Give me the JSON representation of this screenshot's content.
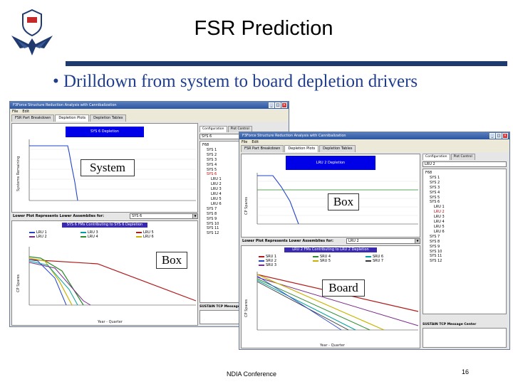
{
  "slide": {
    "title": "FSR Prediction",
    "bullet": "• Drilldown from system to board depletion drivers",
    "footer": "NDIA Conference",
    "page_number": "16",
    "accent_color": "#1f3a6e",
    "bullet_color": "#1f3d8c"
  },
  "callouts": {
    "system": "System",
    "box_left": "Box",
    "box_right": "Box",
    "board": "Board"
  },
  "left_window": {
    "title": "F3Force Structure Reduction Analysis with Cannibalization",
    "menu": [
      "File",
      "Edit"
    ],
    "tabs": [
      "FSR Part Breakdown",
      "Depletion Plots",
      "Depletion Tables"
    ],
    "top_banner": "SYS 6 Depletion",
    "config_tabs": [
      "Configuration",
      "Plot Control"
    ],
    "selected_config": "SYS 6",
    "tree": [
      "F68",
      "SYS 1",
      "SYS 2",
      "SYS 3",
      "SYS 4",
      "SYS 5",
      "SYS 6",
      "LRU 1",
      "LRU 2",
      "LRU 3",
      "LRU 4",
      "LRU 5",
      "LRU 6",
      "SYS 7",
      "SYS 8",
      "SYS 9",
      "SYS 10",
      "SYS 11",
      "SYS 12"
    ],
    "tree_selected_index": 6,
    "lower_plot_label": "Lower Plot Represents Lower Assemblies for:",
    "lower_plot_value": "SYS 6",
    "lower_banner": "SYS 6 FMs Contributing to SYS 6 Depletion",
    "legend": [
      "LRU 1",
      "LRU 2",
      "LRU 3",
      "LRU 4",
      "LRU 5",
      "LRU 6"
    ],
    "legend_colors": [
      "#2244cc",
      "#7a2a8a",
      "#00a0a0",
      "#2d8a2d",
      "#b21a1a",
      "#c8b400"
    ],
    "upper_ylabel": "Systems Remaining",
    "lower_ylabel": "CP Spares",
    "xlabel": "Year - Quarter",
    "message_header": "SUSTAIN TCP Message Center"
  },
  "right_window": {
    "title": "F3Force Structure Reduction Analysis with Cannibalization",
    "menu": [
      "File",
      "Edit"
    ],
    "tabs": [
      "FSR Part Breakdown",
      "Depletion Plots",
      "Depletion Tables"
    ],
    "top_banner": "LRU 2 Depletion",
    "config_tabs": [
      "Configuration",
      "Plot Control"
    ],
    "selected_config": "LRU 2",
    "tree": [
      "F68",
      "SYS 1",
      "SYS 2",
      "SYS 3",
      "SYS 4",
      "SYS 5",
      "SYS 6",
      "LRU 1",
      "LRU 2",
      "LRU 3",
      "LRU 4",
      "LRU 5",
      "LRU 6",
      "SYS 7",
      "SYS 8",
      "SYS 9",
      "SYS 10",
      "SYS 11",
      "SYS 12"
    ],
    "tree_selected_index": 8,
    "lower_plot_label": "Lower Plot Represents Lower Assemblies for:",
    "lower_plot_value": "LRU 2",
    "lower_banner": "LRU 2 FMs Contributing to LRU 2 Depletion",
    "legend": [
      "SRU 1",
      "SRU 2",
      "SRU 3",
      "SRU 4",
      "SRU 5",
      "SRU 6",
      "SRU 7"
    ],
    "legend_colors": [
      "#b21a1a",
      "#2244cc",
      "#7a2a8a",
      "#2d8a2d",
      "#c8b400",
      "#00a0a0",
      "#333333"
    ],
    "upper_ylabel": "CP Spares",
    "lower_ylabel": "CP Spares",
    "xlabel": "Year - Quarter",
    "message_header": "SUSTAIN TCP Message Center"
  }
}
